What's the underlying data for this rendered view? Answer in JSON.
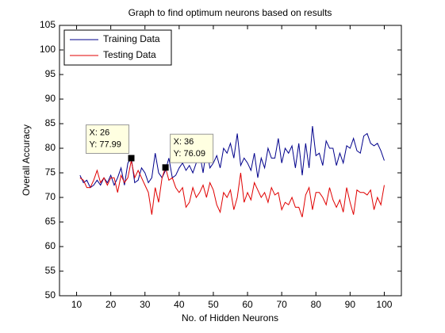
{
  "chart_data": {
    "type": "line",
    "title": "Graph to find optimum neurons based on results",
    "xlabel": "No. of Hidden Neurons",
    "ylabel": "Overall Accuracy",
    "x": [
      11,
      12,
      13,
      14,
      15,
      16,
      17,
      18,
      19,
      20,
      21,
      22,
      23,
      24,
      25,
      26,
      27,
      28,
      29,
      30,
      31,
      32,
      33,
      34,
      35,
      36,
      37,
      38,
      39,
      40,
      41,
      42,
      43,
      44,
      45,
      46,
      47,
      48,
      49,
      50,
      51,
      52,
      53,
      54,
      55,
      56,
      57,
      58,
      59,
      60,
      61,
      62,
      63,
      64,
      65,
      66,
      67,
      68,
      69,
      70,
      71,
      72,
      73,
      74,
      75,
      76,
      77,
      78,
      79,
      80,
      81,
      82,
      83,
      84,
      85,
      86,
      87,
      88,
      89,
      90,
      91,
      92,
      93,
      94,
      95,
      96,
      97,
      98,
      99,
      100
    ],
    "series": [
      {
        "name": "Training Data",
        "color": "#00008b",
        "values": [
          74.5,
          73,
          73.5,
          72,
          72.5,
          73.5,
          72.5,
          74,
          73,
          74.5,
          72.5,
          74,
          76,
          72.5,
          77,
          77.99,
          73,
          73.5,
          76,
          75,
          73,
          74,
          79,
          75,
          74,
          75.5,
          78,
          74,
          74.5,
          76,
          77,
          75.5,
          76.5,
          75,
          77,
          79,
          75,
          80,
          76,
          77,
          78.5,
          76,
          80,
          79,
          81,
          78,
          83,
          76.5,
          78,
          77,
          75.5,
          79,
          74,
          78,
          76,
          80,
          78,
          78,
          82,
          77,
          80,
          79,
          80.5,
          76,
          81,
          74.5,
          81,
          76,
          84.5,
          78.5,
          79,
          76.5,
          81.5,
          80,
          80,
          76.5,
          79,
          77,
          80.5,
          80,
          82,
          79.5,
          79,
          82.5,
          83,
          81,
          80.5,
          81,
          79.5,
          77.5
        ]
      },
      {
        "name": "Testing Data",
        "color": "#e00000",
        "values": [
          74,
          73.5,
          72,
          72,
          73.5,
          75.5,
          73,
          74,
          72.5,
          74,
          74,
          71,
          74.5,
          73,
          74,
          77.5,
          74,
          75.5,
          74,
          72.5,
          71,
          66.5,
          72,
          69,
          74,
          76.09,
          73.5,
          74,
          72,
          71,
          72,
          68,
          69,
          72,
          70,
          71,
          72.5,
          70,
          73,
          71.5,
          68.5,
          67,
          71,
          70,
          71.5,
          67.5,
          70,
          75,
          69,
          71,
          69.5,
          73,
          71.5,
          70,
          71,
          69,
          72,
          70.5,
          71,
          67.5,
          69,
          68.5,
          70,
          68,
          68,
          66,
          70.5,
          72,
          67.5,
          71,
          71,
          70,
          68.5,
          72,
          69.5,
          68,
          69.5,
          67,
          72,
          69,
          66.5,
          71.5,
          71,
          71,
          70.5,
          71.5,
          67.5,
          70,
          68.5,
          72.5
        ]
      }
    ],
    "xlim": [
      5,
      105
    ],
    "xticks": [
      10,
      20,
      30,
      40,
      50,
      60,
      70,
      80,
      90,
      100
    ],
    "ylim": [
      50,
      105
    ],
    "yticks": [
      50,
      55,
      60,
      65,
      70,
      75,
      80,
      85,
      90,
      95,
      100,
      105
    ],
    "legend": "upper left",
    "annotations": [
      {
        "x": 26,
        "y": 77.99,
        "labels": [
          "X: 26",
          "Y: 77.99"
        ]
      },
      {
        "x": 36,
        "y": 76.09,
        "labels": [
          "X: 36",
          "Y: 76.09"
        ]
      }
    ]
  }
}
